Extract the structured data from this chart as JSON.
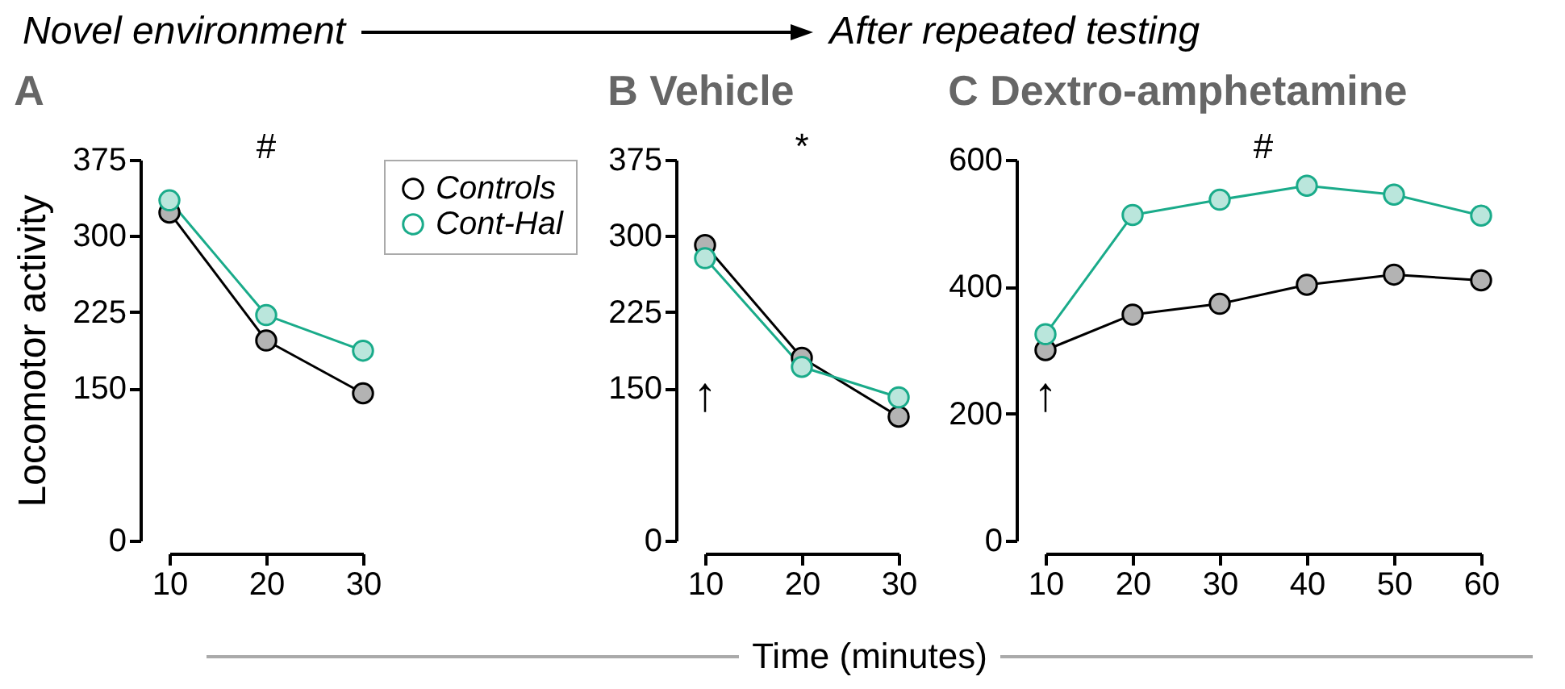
{
  "chart_data": [
    {
      "type": "line",
      "title": "A",
      "ylabel": "Locomotor activity",
      "x": [
        10,
        20,
        30
      ],
      "xlim": [
        10,
        30
      ],
      "xticks": [
        10,
        20,
        30
      ],
      "ylim": [
        0,
        375
      ],
      "yticks": [
        0,
        150,
        225,
        300,
        375
      ],
      "marker": "circle",
      "legend": "top right",
      "series": [
        {
          "name": "Controls",
          "color": "#000000",
          "values": [
            323,
            197,
            145
          ],
          "errors": [
            null,
            null,
            6
          ]
        },
        {
          "name": "Cont-Hal",
          "color": "#1aab8a",
          "values": [
            335,
            222,
            187
          ],
          "errors": [
            null,
            6,
            8
          ]
        }
      ],
      "annotations": [
        "Novel environment",
        "#"
      ]
    },
    {
      "type": "line",
      "title": "B Vehicle",
      "xlabel": "Time (minutes)",
      "x": [
        10,
        20,
        30
      ],
      "xlim": [
        10,
        30
      ],
      "xticks": [
        10,
        20,
        30
      ],
      "ylim": [
        0,
        375
      ],
      "yticks": [
        0,
        150,
        225,
        300,
        375
      ],
      "marker": "circle",
      "series": [
        {
          "color": "#000000",
          "values": [
            291,
            180,
            122
          ],
          "errors": [
            null,
            null,
            6
          ]
        },
        {
          "color": "#1aab8a",
          "values": [
            278,
            171,
            141
          ],
          "errors": [
            null,
            null,
            7
          ]
        }
      ],
      "annotations": [
        "After repeated testing",
        "*",
        "↑"
      ]
    },
    {
      "type": "line",
      "title": "C Dextro-amphetamine",
      "x": [
        10,
        20,
        30,
        40,
        50,
        60
      ],
      "xlim": [
        10,
        60
      ],
      "xticks": [
        10,
        20,
        30,
        40,
        50,
        60
      ],
      "ylim": [
        0,
        600
      ],
      "yticks": [
        0,
        200,
        400,
        600
      ],
      "marker": "circle",
      "series": [
        {
          "color": "#000000",
          "values": [
            300,
            356,
            373,
            403,
            419,
            410
          ],
          "errors": [
            null,
            null,
            null,
            null,
            null,
            10
          ]
        },
        {
          "color": "#1aab8a",
          "values": [
            325,
            513,
            537,
            559,
            545,
            512
          ],
          "errors": [
            10,
            15,
            15,
            17,
            17,
            15
          ]
        }
      ],
      "annotations": [
        "#",
        "↑"
      ]
    }
  ]
}
